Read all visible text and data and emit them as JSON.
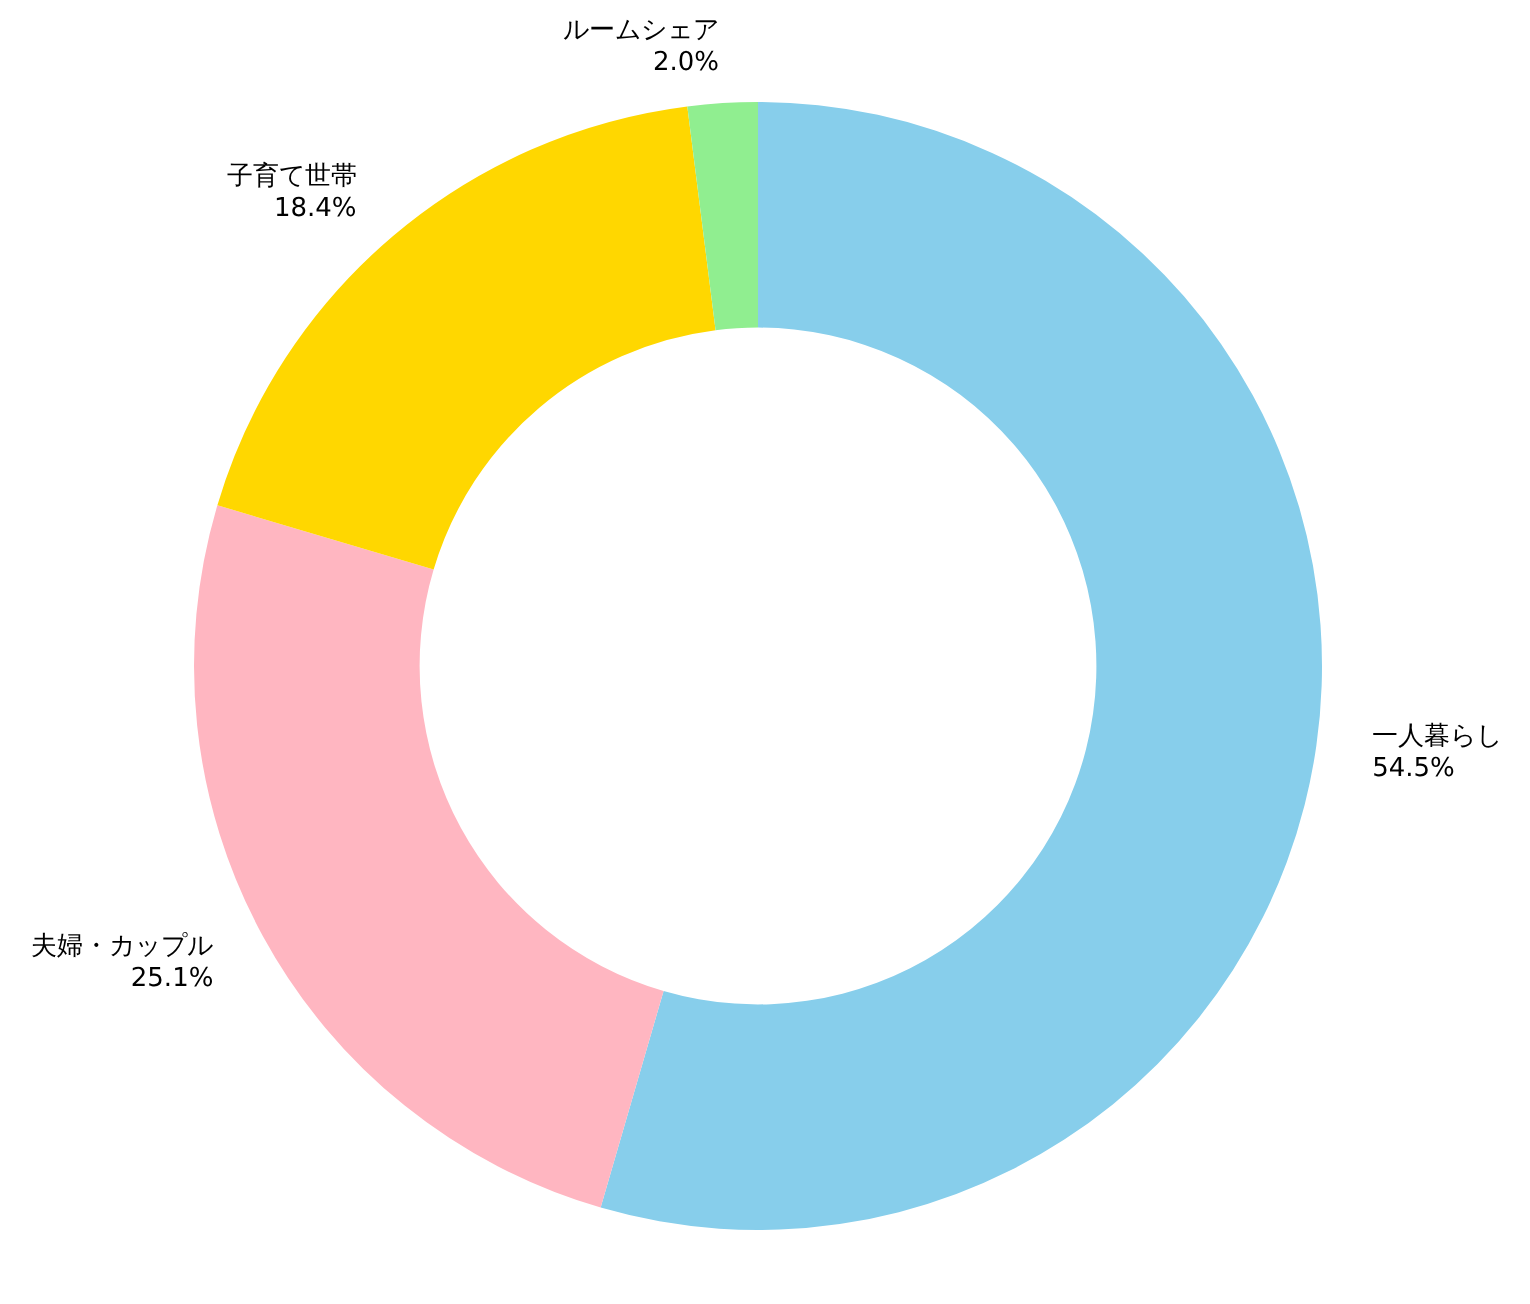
{
  "chart_data": {
    "type": "donut",
    "categories": [
      "一人暮らし",
      "夫婦・カップル",
      "子育て世帯",
      "ルームシェア"
    ],
    "values": [
      54.5,
      25.1,
      18.4,
      2.0
    ],
    "value_labels": [
      "54.5%",
      "25.1%",
      "18.4%",
      "2.0%"
    ],
    "colors": [
      "#87ceeb",
      "#ffb6c1",
      "#ffd700",
      "#90ee90"
    ],
    "legend": false
  }
}
